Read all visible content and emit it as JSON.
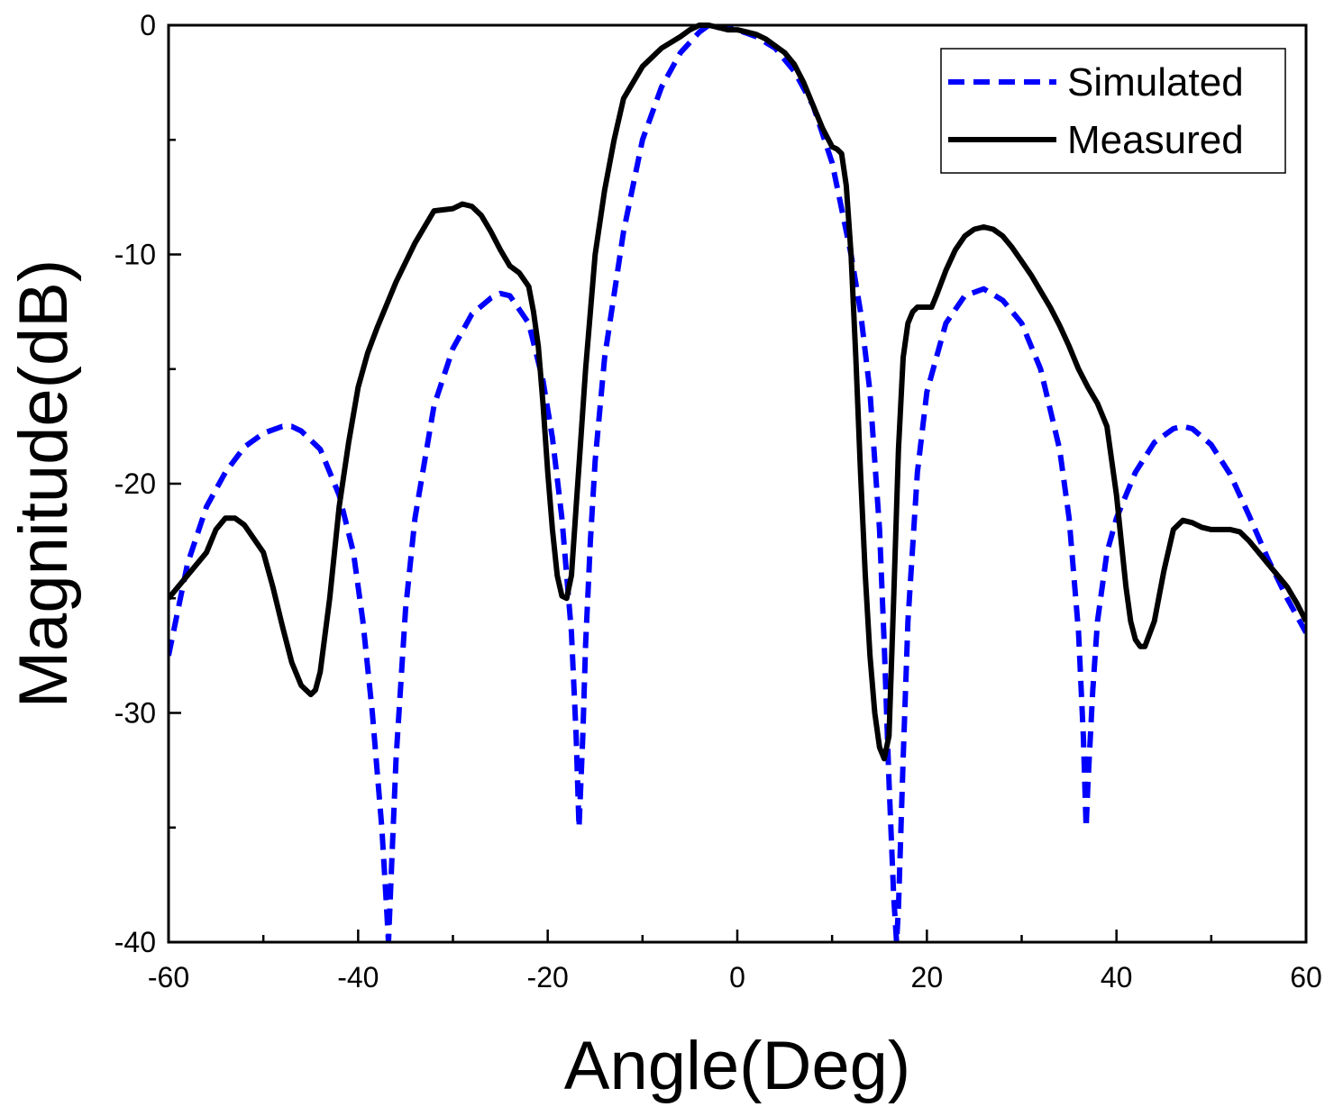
{
  "chart_data": {
    "type": "line",
    "title": "",
    "xlabel": "Angle(Deg)",
    "ylabel": "Magnitude(dB)",
    "xlim": [
      -60,
      60
    ],
    "ylim": [
      -40,
      0
    ],
    "x_ticks": [
      -60,
      -40,
      -20,
      0,
      20,
      40,
      60
    ],
    "y_ticks": [
      -40,
      -30,
      -20,
      -10,
      0
    ],
    "x_tick_labels": [
      "-60",
      "-40",
      "-20",
      "0",
      "20",
      "40",
      "60"
    ],
    "y_tick_labels": [
      "-40",
      "-30",
      "-20",
      "-10",
      "0"
    ],
    "grid": false,
    "legend_position": "top-right",
    "series": [
      {
        "name": "Simulated",
        "color": "#0000ff",
        "style": "dashed",
        "x": [
          -60,
          -58,
          -56,
          -54,
          -52,
          -50,
          -48,
          -47,
          -46,
          -44,
          -42,
          -40.5,
          -39.5,
          -38.5,
          -37.5,
          -37,
          -36.8,
          -36.5,
          -36,
          -35,
          -34,
          -32,
          -30,
          -28,
          -26,
          -25,
          -24,
          -22,
          -20.5,
          -19.5,
          -18.5,
          -17.5,
          -17,
          -16.7,
          -16.3,
          -16,
          -15.5,
          -15,
          -14,
          -12,
          -10,
          -8,
          -6,
          -4,
          -3,
          -2,
          0,
          2,
          4,
          6,
          8,
          10,
          12,
          13,
          14,
          15,
          15.5,
          16,
          16.5,
          16.8,
          17,
          17.5,
          18,
          19,
          20,
          22,
          24,
          26,
          28,
          30,
          32,
          34,
          35,
          36,
          36.5,
          36.8,
          37,
          37.5,
          38,
          39,
          40,
          42,
          44,
          46,
          47,
          48,
          50,
          52,
          54,
          56,
          58,
          60
        ],
        "y": [
          -27.5,
          -23.5,
          -21.0,
          -19.5,
          -18.4,
          -17.8,
          -17.5,
          -17.5,
          -17.7,
          -18.5,
          -20.5,
          -23.0,
          -26.0,
          -30.0,
          -35.0,
          -38.5,
          -40.0,
          -37.0,
          -32.0,
          -25.5,
          -21.5,
          -16.6,
          -14.1,
          -12.6,
          -11.9,
          -11.7,
          -11.8,
          -13.0,
          -15.5,
          -18.0,
          -21.5,
          -26.5,
          -31.0,
          -35.0,
          -31.0,
          -27.0,
          -22.5,
          -19.0,
          -14.5,
          -9.0,
          -5.0,
          -2.7,
          -1.2,
          -0.3,
          0.0,
          -0.1,
          -0.2,
          -0.5,
          -1.0,
          -2.0,
          -3.5,
          -6.0,
          -10.0,
          -12.5,
          -16.0,
          -22.0,
          -27.0,
          -33.0,
          -38.0,
          -40.0,
          -38.5,
          -32.0,
          -26.0,
          -19.5,
          -16.0,
          -13.0,
          -11.8,
          -11.5,
          -12.0,
          -13.0,
          -15.0,
          -18.5,
          -21.5,
          -26.5,
          -31.0,
          -35.0,
          -33.0,
          -29.0,
          -26.0,
          -23.0,
          -21.5,
          -19.5,
          -18.2,
          -17.6,
          -17.5,
          -17.6,
          -18.3,
          -19.6,
          -21.4,
          -23.3,
          -25.0,
          -26.5
        ]
      },
      {
        "name": "Measured",
        "color": "#000000",
        "style": "solid",
        "x": [
          -60,
          -58,
          -56,
          -55,
          -54,
          -53,
          -52,
          -50,
          -49,
          -48,
          -47,
          -46,
          -45,
          -44.5,
          -44,
          -43,
          -42,
          -41,
          -40,
          -39,
          -38,
          -36,
          -34,
          -32,
          -30,
          -29,
          -28,
          -27,
          -26,
          -25,
          -24,
          -23,
          -22,
          -21.5,
          -21,
          -20.5,
          -20,
          -19.5,
          -19,
          -18.5,
          -18,
          -17.5,
          -17,
          -16.5,
          -16,
          -15.5,
          -15,
          -14,
          -13,
          -12,
          -10,
          -8,
          -6,
          -5,
          -4,
          -3,
          -2,
          -1,
          0,
          1,
          2,
          3,
          4,
          5,
          6,
          7,
          8,
          9,
          10,
          10.5,
          11,
          11.5,
          12,
          12.5,
          13,
          13.5,
          14,
          14.5,
          15,
          15.5,
          16,
          16.5,
          17,
          17.5,
          18,
          18.5,
          19,
          19.5,
          20,
          20.5,
          21,
          22,
          23,
          24,
          25,
          26,
          27,
          28,
          29,
          30,
          31,
          32,
          33,
          34,
          35,
          36,
          37,
          38,
          39,
          39.5,
          40,
          40.5,
          41,
          41.5,
          42,
          42.5,
          43,
          44,
          45,
          46,
          47,
          48,
          49,
          50,
          51,
          52,
          53,
          54,
          55,
          56,
          57,
          58,
          59,
          60
        ],
        "y": [
          -25.0,
          -24.0,
          -23.0,
          -22.0,
          -21.5,
          -21.5,
          -21.8,
          -23.0,
          -24.5,
          -26.2,
          -27.8,
          -28.8,
          -29.2,
          -29.0,
          -28.2,
          -25.0,
          -21.0,
          -18.2,
          -15.8,
          -14.3,
          -13.2,
          -11.2,
          -9.5,
          -8.1,
          -8.0,
          -7.8,
          -7.9,
          -8.3,
          -9.0,
          -9.8,
          -10.5,
          -10.8,
          -11.4,
          -12.5,
          -14.0,
          -16.5,
          -19.5,
          -22.0,
          -24.0,
          -24.9,
          -25.0,
          -24.0,
          -21.0,
          -18.0,
          -15.0,
          -12.5,
          -10.0,
          -7.2,
          -5.0,
          -3.2,
          -1.8,
          -1.0,
          -0.5,
          -0.2,
          0.0,
          0.0,
          -0.1,
          -0.2,
          -0.2,
          -0.3,
          -0.4,
          -0.6,
          -0.9,
          -1.2,
          -1.7,
          -2.5,
          -3.5,
          -4.5,
          -5.3,
          -5.4,
          -5.6,
          -7.0,
          -10.0,
          -14.5,
          -19.5,
          -24.0,
          -27.5,
          -30.0,
          -31.5,
          -32.0,
          -31.0,
          -25.0,
          -18.5,
          -14.5,
          -13.0,
          -12.5,
          -12.3,
          -12.3,
          -12.3,
          -12.3,
          -11.8,
          -10.7,
          -9.8,
          -9.2,
          -8.9,
          -8.8,
          -8.9,
          -9.2,
          -9.7,
          -10.3,
          -10.9,
          -11.6,
          -12.3,
          -13.1,
          -14.0,
          -15.0,
          -15.8,
          -16.5,
          -17.5,
          -19.0,
          -20.5,
          -22.5,
          -24.5,
          -26.0,
          -26.8,
          -27.1,
          -27.1,
          -26.0,
          -23.8,
          -22.0,
          -21.6,
          -21.7,
          -21.9,
          -22.0,
          -22.0,
          -22.0,
          -22.1,
          -22.5,
          -23.0,
          -23.5,
          -24.0,
          -24.5,
          -25.2,
          -26.0
        ]
      }
    ]
  }
}
